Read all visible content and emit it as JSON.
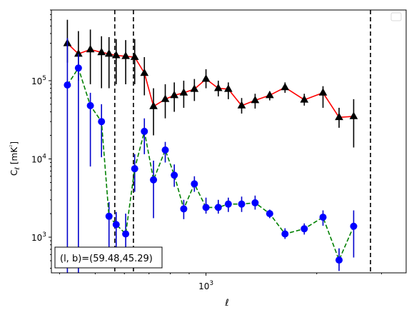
{
  "chart_data": {
    "type": "line",
    "xlabel": "ℓ",
    "ylabel": "Cℓ  [mK²]",
    "xscale": "log",
    "yscale": "log",
    "xlim": [
      380,
      3500
    ],
    "ylim": [
      350,
      800000
    ],
    "x_tick_labels": [
      {
        "value": 1000,
        "label": "10",
        "sup": "3"
      }
    ],
    "y_tick_labels": [
      {
        "value": 1000,
        "label": "10",
        "sup": "3"
      },
      {
        "value": 10000,
        "label": "10",
        "sup": "4"
      },
      {
        "value": 100000,
        "label": "10",
        "sup": "5"
      }
    ],
    "vlines": [
      565,
      635,
      2800
    ],
    "annotation": "(l, b)=(59.48,45.29)",
    "legend": {
      "placement": "top-right",
      "entries": []
    },
    "series": [
      {
        "marker": "triangle",
        "line_color": "#ff0000",
        "line_style": "solid",
        "marker_color": "#000000",
        "errorbar_color": "#000000",
        "points": [
          {
            "x": 420,
            "y": 300000,
            "lo": 170000,
            "hi": 600000
          },
          {
            "x": 450,
            "y": 220000,
            "lo": 100000,
            "hi": 430000
          },
          {
            "x": 485,
            "y": 250000,
            "lo": 90000,
            "hi": 450000
          },
          {
            "x": 520,
            "y": 230000,
            "lo": 80000,
            "hi": 370000
          },
          {
            "x": 545,
            "y": 220000,
            "lo": 80000,
            "hi": 360000
          },
          {
            "x": 570,
            "y": 210000,
            "lo": 90000,
            "hi": 340000
          },
          {
            "x": 605,
            "y": 205000,
            "lo": 90000,
            "hi": 330000
          },
          {
            "x": 640,
            "y": 200000,
            "lo": 90000,
            "hi": 340000
          },
          {
            "x": 680,
            "y": 125000,
            "lo": 65000,
            "hi": 200000
          },
          {
            "x": 720,
            "y": 47000,
            "lo": 20000,
            "hi": 80000
          },
          {
            "x": 775,
            "y": 58000,
            "lo": 33000,
            "hi": 90000
          },
          {
            "x": 820,
            "y": 65000,
            "lo": 40000,
            "hi": 95000
          },
          {
            "x": 870,
            "y": 70000,
            "lo": 45000,
            "hi": 100000
          },
          {
            "x": 930,
            "y": 78000,
            "lo": 55000,
            "hi": 105000
          },
          {
            "x": 1000,
            "y": 105000,
            "lo": 80000,
            "hi": 140000
          },
          {
            "x": 1080,
            "y": 80000,
            "lo": 63000,
            "hi": 100000
          },
          {
            "x": 1150,
            "y": 78000,
            "lo": 58000,
            "hi": 95000
          },
          {
            "x": 1250,
            "y": 48000,
            "lo": 38000,
            "hi": 60000
          },
          {
            "x": 1360,
            "y": 56000,
            "lo": 44000,
            "hi": 68000
          },
          {
            "x": 1490,
            "y": 65000,
            "lo": 56000,
            "hi": 73000
          },
          {
            "x": 1640,
            "y": 82000,
            "lo": 70000,
            "hi": 95000
          },
          {
            "x": 1850,
            "y": 57000,
            "lo": 48000,
            "hi": 68000
          },
          {
            "x": 2080,
            "y": 70000,
            "lo": 45000,
            "hi": 85000
          },
          {
            "x": 2300,
            "y": 34000,
            "lo": 25000,
            "hi": 45000
          },
          {
            "x": 2520,
            "y": 35000,
            "lo": 14000,
            "hi": 58000
          }
        ]
      },
      {
        "marker": "circle",
        "line_color": "#008000",
        "line_style": "dashed",
        "marker_color": "#0000ff",
        "errorbar_color": "#0000cc",
        "points": [
          {
            "x": 420,
            "y": 88000,
            "lo": 350,
            "hi": 350000
          },
          {
            "x": 450,
            "y": 145000,
            "lo": 350,
            "hi": 220000
          },
          {
            "x": 485,
            "y": 48000,
            "lo": 8000,
            "hi": 70000
          },
          {
            "x": 520,
            "y": 30000,
            "lo": 10500,
            "hi": 50000
          },
          {
            "x": 545,
            "y": 1850,
            "lo": 700,
            "hi": 2800
          },
          {
            "x": 570,
            "y": 1450,
            "lo": 700,
            "hi": 2100
          },
          {
            "x": 605,
            "y": 1100,
            "lo": 720,
            "hi": 2000
          },
          {
            "x": 640,
            "y": 7500,
            "lo": 3800,
            "hi": 11500
          },
          {
            "x": 680,
            "y": 22500,
            "lo": 11500,
            "hi": 33000
          },
          {
            "x": 720,
            "y": 5400,
            "lo": 1750,
            "hi": 9500
          },
          {
            "x": 775,
            "y": 13000,
            "lo": 9000,
            "hi": 16500
          },
          {
            "x": 820,
            "y": 6200,
            "lo": 4400,
            "hi": 8500
          },
          {
            "x": 870,
            "y": 2300,
            "lo": 1700,
            "hi": 3000
          },
          {
            "x": 930,
            "y": 4800,
            "lo": 3800,
            "hi": 6000
          },
          {
            "x": 1000,
            "y": 2400,
            "lo": 2000,
            "hi": 3200
          },
          {
            "x": 1080,
            "y": 2400,
            "lo": 2000,
            "hi": 3000
          },
          {
            "x": 1150,
            "y": 2650,
            "lo": 2100,
            "hi": 3200
          },
          {
            "x": 1250,
            "y": 2650,
            "lo": 2100,
            "hi": 3300
          },
          {
            "x": 1360,
            "y": 2750,
            "lo": 2250,
            "hi": 3400
          },
          {
            "x": 1490,
            "y": 2000,
            "lo": 1750,
            "hi": 2250
          },
          {
            "x": 1640,
            "y": 1100,
            "lo": 950,
            "hi": 1300
          },
          {
            "x": 1850,
            "y": 1280,
            "lo": 1080,
            "hi": 1500
          },
          {
            "x": 2080,
            "y": 1800,
            "lo": 1400,
            "hi": 2200
          },
          {
            "x": 2300,
            "y": 510,
            "lo": 370,
            "hi": 720
          },
          {
            "x": 2520,
            "y": 1380,
            "lo": 550,
            "hi": 2200
          }
        ]
      }
    ]
  }
}
